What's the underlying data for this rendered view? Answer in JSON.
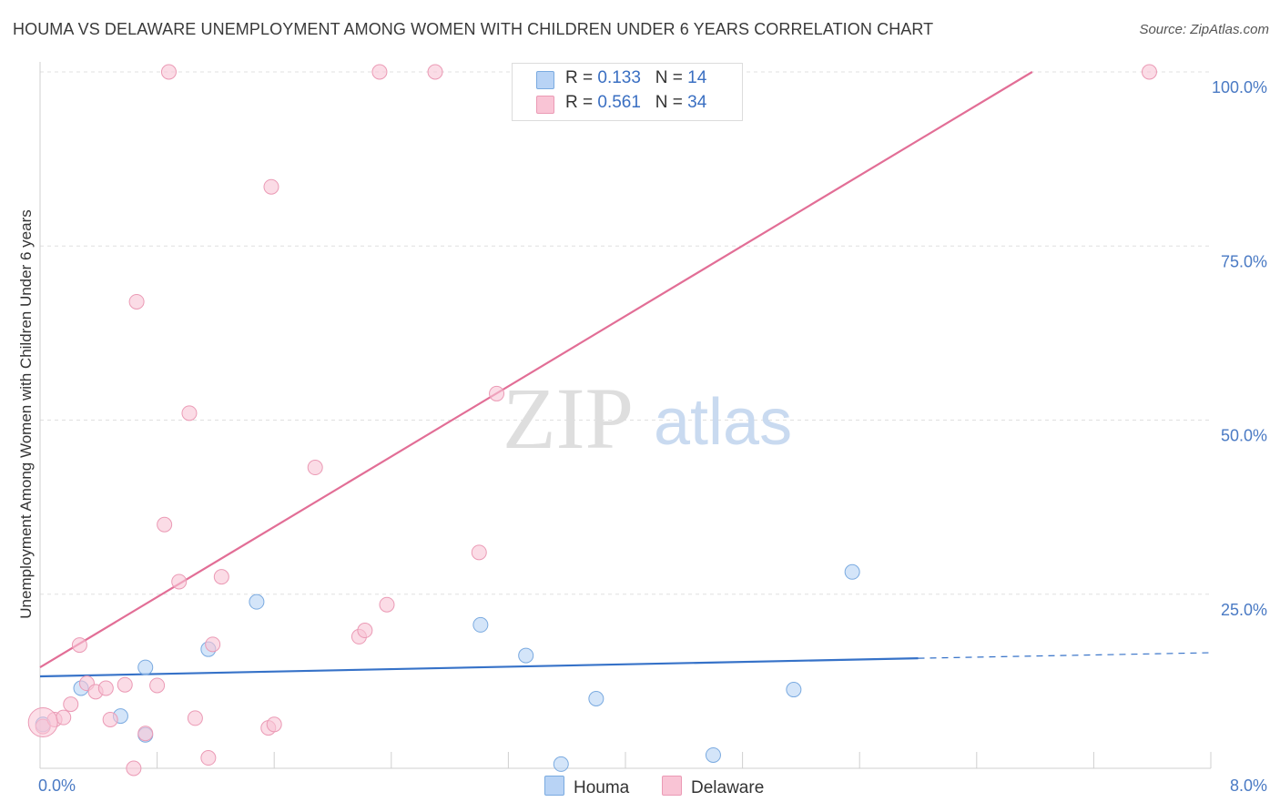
{
  "title": "HOUMA VS DELAWARE UNEMPLOYMENT AMONG WOMEN WITH CHILDREN UNDER 6 YEARS CORRELATION CHART",
  "source": "Source: ZipAtlas.com",
  "watermark": {
    "zip": "ZIP",
    "atlas": "atlas"
  },
  "colors": {
    "houma_fill": "#b8d3f5",
    "houma_stroke": "#7aaae0",
    "houma_line": "#3672c8",
    "delaware_fill": "#f9c4d5",
    "delaware_stroke": "#eb9ab5",
    "delaware_line": "#e26e96",
    "tick": "#4a7ac4",
    "grid": "#e0e0e0"
  },
  "legend": {
    "houma": {
      "r_label": "R = ",
      "r_value": "0.133",
      "n_label": "N = ",
      "n_value": "14"
    },
    "delaware": {
      "r_label": "R = ",
      "r_value": "0.561",
      "n_label": "N = ",
      "n_value": "34"
    }
  },
  "chart_data": {
    "type": "scatter",
    "title": "HOUMA VS DELAWARE UNEMPLOYMENT AMONG WOMEN WITH CHILDREN UNDER 6 YEARS CORRELATION CHART",
    "xlabel": "",
    "ylabel": "Unemployment Among Women with Children Under 6 years",
    "xlim": [
      0,
      8.0
    ],
    "ylim": [
      0,
      100
    ],
    "x_tick_labels": [
      "0.0%",
      "8.0%"
    ],
    "y_tick_values": [
      25,
      50,
      75,
      100
    ],
    "y_tick_labels": [
      "25.0%",
      "50.0%",
      "75.0%",
      "100.0%"
    ],
    "legend_position": "top-center",
    "series": [
      {
        "name": "Houma",
        "r": 0.133,
        "n": 14,
        "points": [
          {
            "x": 0.02,
            "y": 6.3
          },
          {
            "x": 0.28,
            "y": 11.5
          },
          {
            "x": 0.55,
            "y": 7.5
          },
          {
            "x": 0.72,
            "y": 14.5
          },
          {
            "x": 0.72,
            "y": 4.8
          },
          {
            "x": 1.15,
            "y": 17.1
          },
          {
            "x": 1.48,
            "y": 23.9
          },
          {
            "x": 3.01,
            "y": 20.6
          },
          {
            "x": 3.32,
            "y": 16.2
          },
          {
            "x": 3.56,
            "y": 0.6
          },
          {
            "x": 3.8,
            "y": 10.0
          },
          {
            "x": 4.6,
            "y": 1.9
          },
          {
            "x": 5.15,
            "y": 11.3
          },
          {
            "x": 5.55,
            "y": 28.2
          }
        ],
        "trend": {
          "x0": 0.0,
          "y0": 13.2,
          "x1": 6.0,
          "y1": 15.8,
          "dash_to_x": 8.0,
          "dash_to_y": 16.6
        }
      },
      {
        "name": "Delaware",
        "r": 0.561,
        "n": 34,
        "points": [
          {
            "x": 0.02,
            "y": 6.0
          },
          {
            "x": 0.1,
            "y": 7.0
          },
          {
            "x": 0.16,
            "y": 7.3
          },
          {
            "x": 0.21,
            "y": 9.2
          },
          {
            "x": 0.27,
            "y": 17.7
          },
          {
            "x": 0.32,
            "y": 12.2
          },
          {
            "x": 0.38,
            "y": 11.0
          },
          {
            "x": 0.45,
            "y": 11.5
          },
          {
            "x": 0.48,
            "y": 7.0
          },
          {
            "x": 0.58,
            "y": 12.0
          },
          {
            "x": 0.64,
            "y": 0.0
          },
          {
            "x": 0.66,
            "y": 67.0
          },
          {
            "x": 0.72,
            "y": 5.0
          },
          {
            "x": 0.8,
            "y": 11.9
          },
          {
            "x": 0.85,
            "y": 35.0
          },
          {
            "x": 0.88,
            "y": 100.0
          },
          {
            "x": 0.95,
            "y": 26.8
          },
          {
            "x": 1.02,
            "y": 51.0
          },
          {
            "x": 1.06,
            "y": 7.2
          },
          {
            "x": 1.15,
            "y": 1.5
          },
          {
            "x": 1.18,
            "y": 17.8
          },
          {
            "x": 1.24,
            "y": 27.5
          },
          {
            "x": 1.56,
            "y": 5.8
          },
          {
            "x": 1.58,
            "y": 83.5
          },
          {
            "x": 1.6,
            "y": 6.3
          },
          {
            "x": 1.88,
            "y": 43.2
          },
          {
            "x": 2.18,
            "y": 18.9
          },
          {
            "x": 2.22,
            "y": 19.8
          },
          {
            "x": 2.32,
            "y": 100.0
          },
          {
            "x": 2.37,
            "y": 23.5
          },
          {
            "x": 2.7,
            "y": 100.0
          },
          {
            "x": 3.0,
            "y": 31.0
          },
          {
            "x": 3.12,
            "y": 53.8
          },
          {
            "x": 7.58,
            "y": 100.0
          }
        ],
        "trend": {
          "x0": 0.0,
          "y0": 14.5,
          "x1": 6.78,
          "y1": 100.0
        }
      }
    ]
  },
  "bottom_legend": {
    "houma": "Houma",
    "delaware": "Delaware"
  }
}
